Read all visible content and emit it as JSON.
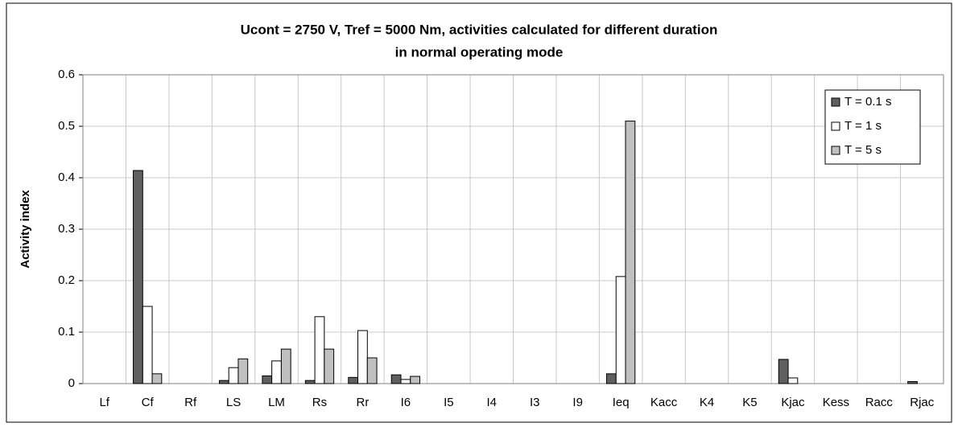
{
  "chart_data": {
    "type": "bar",
    "title": [
      "Ucont = 2750 V, Tref = 5000 Nm, activities calculated for different duration",
      "in normal operating mode"
    ],
    "ylabel": "Activity index",
    "categories": [
      "Lf",
      "Cf",
      "Rf",
      "LS",
      "LM",
      "Rs",
      "Rr",
      "I6",
      "I5",
      "I4",
      "I3",
      "I9",
      "Ieq",
      "Kacc",
      "K4",
      "K5",
      "Kjac",
      "Kess",
      "Racc",
      "Rjac"
    ],
    "series": [
      {
        "name": "T = 0.1 s",
        "color": "#606060",
        "values": [
          0,
          0.414,
          0,
          0.006,
          0.015,
          0.006,
          0.012,
          0.017,
          0,
          0,
          0,
          0,
          0.019,
          0,
          0,
          0,
          0.047,
          0,
          0,
          0.004
        ]
      },
      {
        "name": "T = 1 s",
        "color": "#ffffff",
        "values": [
          0,
          0.15,
          0,
          0.031,
          0.044,
          0.13,
          0.103,
          0.008,
          0,
          0,
          0,
          0,
          0.208,
          0,
          0,
          0,
          0.011,
          0,
          0,
          0
        ]
      },
      {
        "name": "T = 5 s",
        "color": "#c0c0c0",
        "values": [
          0,
          0.019,
          0,
          0.048,
          0.067,
          0.067,
          0.05,
          0.014,
          0,
          0,
          0,
          0,
          0.51,
          0,
          0,
          0,
          0,
          0,
          0,
          0
        ]
      }
    ],
    "ylim": [
      0,
      0.6
    ],
    "yticks": [
      0,
      0.1,
      0.2,
      0.3,
      0.4,
      0.5,
      0.6
    ],
    "grid": true,
    "legend": "upper right"
  }
}
